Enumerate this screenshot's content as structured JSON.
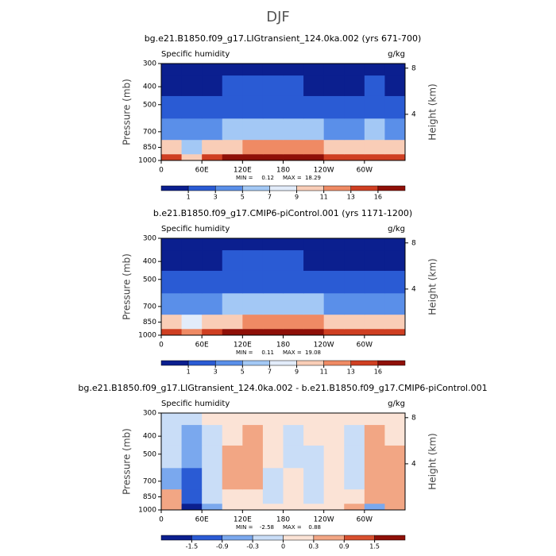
{
  "title": "DJF",
  "chart_data": [
    {
      "type": "contour",
      "title": "bg.e21.B1850.f09_g17.LIGtransient_124.0ka.002 (yrs 671-700)",
      "left_label": "Specific humidity",
      "right_label": "g/kg",
      "ylabel": "Pressure (mb)",
      "y2label": "Height (km)",
      "x": [
        0,
        30,
        60,
        90,
        120,
        150,
        180,
        210,
        240,
        270,
        300,
        330
      ],
      "xlim": [
        0,
        360
      ],
      "xticks": [
        0,
        {
          "value": 60,
          "label": "60E"
        },
        {
          "value": 120,
          "label": "120E"
        },
        180,
        {
          "value": 240,
          "label": "120W"
        },
        {
          "value": 300,
          "label": "60W"
        }
      ],
      "y": [
        1000,
        850,
        700,
        500,
        400,
        300
      ],
      "ylim": [
        1000,
        300
      ],
      "ylog": true,
      "yticks": [
        300,
        400,
        500,
        700,
        850,
        1000
      ],
      "y2lim": [
        0,
        8.4
      ],
      "y2ticks": [
        4,
        8
      ],
      "z": [
        [
          14,
          10,
          15,
          16,
          16,
          17,
          17,
          16,
          15,
          14,
          14,
          14
        ],
        [
          9,
          6,
          9,
          10,
          11,
          12,
          12,
          11,
          10,
          9,
          10,
          10
        ],
        [
          4,
          3,
          4,
          5,
          6,
          6,
          6,
          5,
          4,
          4,
          5,
          4
        ],
        [
          1.5,
          1,
          1.5,
          2,
          2,
          2,
          2,
          1.5,
          1.2,
          1.5,
          2,
          1.5
        ],
        [
          0.8,
          0.6,
          0.8,
          1,
          1,
          1,
          1,
          0.8,
          0.7,
          0.8,
          1,
          0.8
        ],
        [
          0.3,
          0.2,
          0.3,
          0.4,
          0.4,
          0.4,
          0.4,
          0.3,
          0.3,
          0.3,
          0.4,
          0.3
        ]
      ],
      "min_label": "MIN =",
      "min": 0.12,
      "max_label": "MAX =",
      "max": 18.29,
      "levels": [
        1,
        3,
        5,
        7,
        9,
        11,
        13,
        16
      ],
      "colors": [
        "#0b1f8f",
        "#2a5bd4",
        "#5a8fe9",
        "#a3c8f5",
        "#e2ecfa",
        "#f9cdb7",
        "#ef8a64",
        "#cf3f22",
        "#8f1008"
      ]
    },
    {
      "type": "contour",
      "title": "b.e21.B1850.f09_g17.CMIP6-piControl.001 (yrs 1171-1200)",
      "left_label": "Specific humidity",
      "right_label": "g/kg",
      "ylabel": "Pressure (mb)",
      "y2label": "Height (km)",
      "x": [
        0,
        30,
        60,
        90,
        120,
        150,
        180,
        210,
        240,
        270,
        300,
        330
      ],
      "xlim": [
        0,
        360
      ],
      "xticks": [
        0,
        {
          "value": 60,
          "label": "60E"
        },
        {
          "value": 120,
          "label": "120E"
        },
        180,
        {
          "value": 240,
          "label": "120W"
        },
        {
          "value": 300,
          "label": "60W"
        }
      ],
      "y": [
        1000,
        850,
        700,
        500,
        400,
        300
      ],
      "ylim": [
        1000,
        300
      ],
      "ylog": true,
      "yticks": [
        300,
        400,
        500,
        700,
        850,
        1000
      ],
      "y2lim": [
        0,
        8.4
      ],
      "y2ticks": [
        4,
        8
      ],
      "z": [
        [
          14,
          12,
          15,
          16,
          16,
          17,
          17,
          16,
          15,
          14,
          14,
          14
        ],
        [
          9,
          7,
          9,
          10,
          11,
          12,
          12,
          11,
          10,
          9,
          10,
          9
        ],
        [
          4,
          4,
          4,
          5,
          6,
          6,
          6,
          5,
          4,
          4,
          4,
          4
        ],
        [
          1.5,
          1.5,
          1.5,
          2,
          2,
          2,
          2,
          1.5,
          1.2,
          1.5,
          1.5,
          1.5
        ],
        [
          0.8,
          0.7,
          0.8,
          1,
          1,
          1,
          1,
          0.8,
          0.7,
          0.8,
          0.8,
          0.8
        ],
        [
          0.3,
          0.2,
          0.3,
          0.4,
          0.4,
          0.4,
          0.4,
          0.3,
          0.3,
          0.3,
          0.3,
          0.3
        ]
      ],
      "min_label": "MIN =",
      "min": 0.11,
      "max_label": "MAX =",
      "max": 19.08,
      "levels": [
        1,
        3,
        5,
        7,
        9,
        11,
        13,
        16
      ],
      "colors": [
        "#0b1f8f",
        "#2a5bd4",
        "#5a8fe9",
        "#a3c8f5",
        "#e2ecfa",
        "#f9cdb7",
        "#ef8a64",
        "#cf3f22",
        "#8f1008"
      ]
    },
    {
      "type": "contour",
      "title": "bg.e21.B1850.f09_g17.LIGtransient_124.0ka.002 - b.e21.B1850.f09_g17.CMIP6-piControl.001",
      "left_label": "Specific humidity",
      "right_label": "g/kg",
      "ylabel": "Pressure (mb)",
      "y2label": "Height (km)",
      "x": [
        0,
        30,
        60,
        90,
        120,
        150,
        180,
        210,
        240,
        270,
        300,
        330
      ],
      "xlim": [
        0,
        360
      ],
      "xticks": [
        0,
        {
          "value": 60,
          "label": "60E"
        },
        {
          "value": 120,
          "label": "120E"
        },
        180,
        {
          "value": 240,
          "label": "120W"
        },
        {
          "value": 300,
          "label": "60W"
        }
      ],
      "y": [
        1000,
        850,
        700,
        500,
        400,
        300
      ],
      "ylim": [
        1000,
        300
      ],
      "ylog": true,
      "yticks": [
        300,
        400,
        500,
        700,
        850,
        1000
      ],
      "y2lim": [
        0,
        8.4
      ],
      "y2ticks": [
        4,
        8
      ],
      "z": [
        [
          0.5,
          -2,
          -0.5,
          0,
          0.2,
          0,
          0,
          0,
          0,
          0.5,
          -0.5,
          0.3
        ],
        [
          0.3,
          -1.2,
          -0.3,
          0.2,
          0,
          -0.1,
          0,
          -0.2,
          0.2,
          0,
          0.3,
          0.5
        ],
        [
          -0.5,
          -1,
          -0.2,
          0.4,
          0.3,
          -0.1,
          0,
          -0.2,
          0,
          -0.3,
          0.4,
          0.6
        ],
        [
          -0.3,
          -0.9,
          -0.2,
          0.3,
          0.4,
          0.1,
          -0.1,
          -0.1,
          0,
          -0.2,
          0.5,
          0.4
        ],
        [
          -0.2,
          -0.6,
          -0.1,
          0.2,
          0.3,
          0.1,
          -0.1,
          0,
          0,
          -0.1,
          0.3,
          0.2
        ],
        [
          -0.1,
          -0.2,
          0,
          0.1,
          0.1,
          0,
          0,
          0,
          0,
          0,
          0.1,
          0.1
        ]
      ],
      "min_label": "MIN =",
      "min": -2.58,
      "max_label": "MAX =",
      "max": 0.88,
      "levels": [
        -1.5,
        -0.9,
        -0.3,
        0,
        0.3,
        0.9,
        1.5
      ],
      "colors": [
        "#0b1f8f",
        "#2a5bd4",
        "#7aa8ee",
        "#c9ddf7",
        "#fbe3d6",
        "#f2a684",
        "#d8502f",
        "#8f1008"
      ]
    }
  ]
}
